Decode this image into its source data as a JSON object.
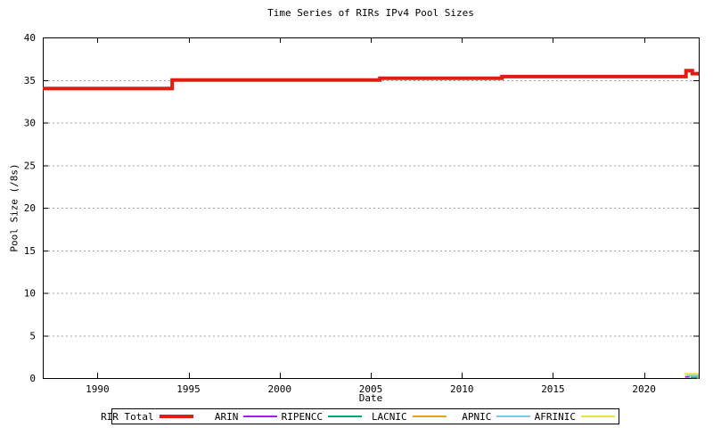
{
  "figure": {
    "title": "Time Series of RIRs IPv4 Pool Sizes",
    "xlabel": "Date",
    "ylabel": "Pool Size (/8s)"
  },
  "colors": {
    "background": "#ffffff",
    "axis": "#000000",
    "grid": "#a0a0a0",
    "rir_total": "#df1d12",
    "arin": "#a020f0",
    "ripencc": "#00a77d",
    "lacnic": "#dfa520",
    "apnic": "#7ec9e8",
    "afrinic": "#e6e63e"
  },
  "chart_data": {
    "type": "line",
    "title": "Time Series of RIRs IPv4 Pool Sizes",
    "xlabel": "Date",
    "ylabel": "Pool Size (/8s)",
    "xlim": [
      1987,
      2023
    ],
    "ylim": [
      0,
      40
    ],
    "xticks": [
      1990,
      1995,
      2000,
      2005,
      2010,
      2015,
      2020
    ],
    "yticks": [
      0,
      5,
      10,
      15,
      20,
      25,
      30,
      35,
      40
    ],
    "grid": "horizontal-dashed",
    "legend_position": "bottom-outside",
    "series": [
      {
        "name": "RIR Total",
        "color": "#df1d12",
        "line_width": 4,
        "step": true,
        "points": [
          [
            1987.0,
            34.0
          ],
          [
            1994.1,
            34.0
          ],
          [
            1994.1,
            35.0
          ],
          [
            2005.5,
            35.0
          ],
          [
            2005.5,
            35.2
          ],
          [
            2012.2,
            35.2
          ],
          [
            2012.2,
            35.4
          ],
          [
            2022.3,
            35.4
          ],
          [
            2022.3,
            36.1
          ],
          [
            2022.65,
            36.1
          ],
          [
            2022.65,
            35.75
          ],
          [
            2023.0,
            35.75
          ]
        ]
      },
      {
        "name": "ARIN",
        "color": "#a020f0",
        "line_width": 2,
        "points": [
          [
            2022.25,
            0.15
          ],
          [
            2022.5,
            0.15
          ]
        ]
      },
      {
        "name": "RIPENCC",
        "color": "#00a77d",
        "line_width": 2,
        "points": [
          [
            2022.55,
            0.07
          ],
          [
            2023.0,
            0.07
          ]
        ]
      },
      {
        "name": "LACNIC",
        "color": "#dfa520",
        "line_width": 2,
        "points": [
          [
            2022.9,
            0.02
          ],
          [
            2023.0,
            0.02
          ]
        ]
      },
      {
        "name": "APNIC",
        "color": "#7ec9e8",
        "line_width": 2,
        "points": [
          [
            2022.35,
            0.3
          ],
          [
            2023.0,
            0.3
          ]
        ]
      },
      {
        "name": "AFRINIC",
        "color": "#e6e63e",
        "line_width": 2,
        "points": [
          [
            2022.2,
            0.5
          ],
          [
            2023.0,
            0.5
          ]
        ]
      }
    ]
  },
  "legend": {
    "items": [
      {
        "label": "RIR Total",
        "color": "#df1d12",
        "thickness": 4
      },
      {
        "label": "ARIN",
        "color": "#a020f0",
        "thickness": 2
      },
      {
        "label": "RIPENCC",
        "color": "#00a77d",
        "thickness": 2
      },
      {
        "label": "LACNIC",
        "color": "#dfa520",
        "thickness": 2
      },
      {
        "label": "APNIC",
        "color": "#7ec9e8",
        "thickness": 2
      },
      {
        "label": "AFRINIC",
        "color": "#e6e63e",
        "thickness": 2
      }
    ]
  }
}
